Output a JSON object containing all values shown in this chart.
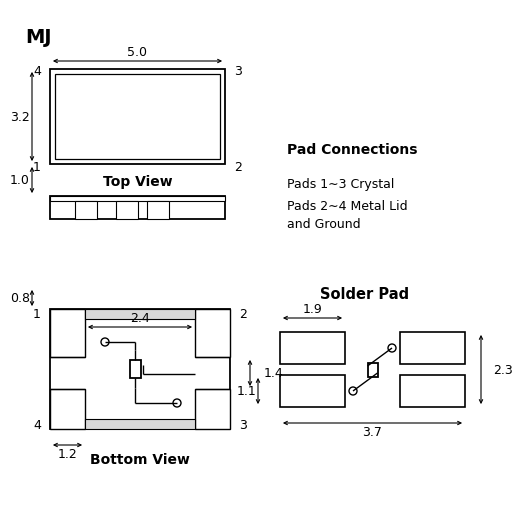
{
  "title": "MJ",
  "bg_color": "#ffffff",
  "line_color": "#000000",
  "pad_connections_title": "Pad Connections",
  "pad_connections_line1": "Pads 1∼3 Crystal",
  "pad_connections_line2": "Pads 2∼4 Metal Lid",
  "pad_connections_line3": "and Ground",
  "solder_pad_title": "Solder Pad",
  "top_view_label": "Top View",
  "bottom_view_label": "Bottom View",
  "dim_5_0": "5.0",
  "dim_3_2": "3.2",
  "dim_1_0": "1.0",
  "dim_2_4": "2.4",
  "dim_0_8": "0.8",
  "dim_1_4": "1.4",
  "dim_1_2": "1.2",
  "dim_1_9": "1.9",
  "dim_2_3": "2.3",
  "dim_1_1": "1.1",
  "dim_3_7": "3.7"
}
